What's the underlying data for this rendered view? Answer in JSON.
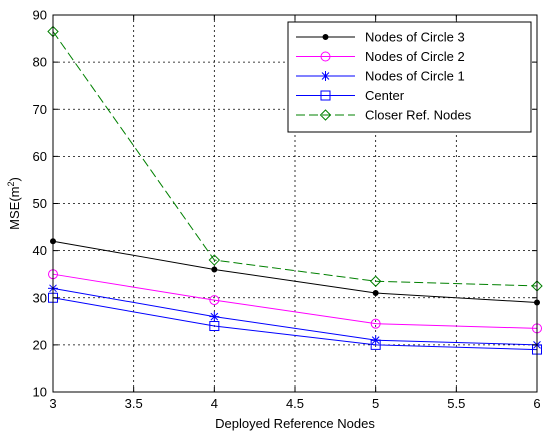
{
  "chart_data": {
    "type": "line",
    "title": "",
    "xlabel": "Deployed Reference Nodes",
    "ylabel_main": "MSE(m",
    "ylabel_sup": "2",
    "ylabel_end": ")",
    "xlim": [
      3,
      6
    ],
    "ylim": [
      10,
      90
    ],
    "xticks": [
      3,
      3.5,
      4,
      4.5,
      5,
      5.5,
      6
    ],
    "xtick_labels": [
      "3",
      "3.5",
      "4",
      "4.5",
      "5",
      "5.5",
      "6"
    ],
    "yticks": [
      10,
      20,
      30,
      40,
      50,
      60,
      70,
      80,
      90
    ],
    "ytick_labels": [
      "10",
      "20",
      "30",
      "40",
      "50",
      "60",
      "70",
      "80",
      "90"
    ],
    "grid": true,
    "legend_position": "top-right",
    "x": [
      3,
      4,
      5,
      6
    ],
    "series": [
      {
        "name": "Nodes of Circle 3",
        "values": [
          42,
          36,
          31,
          29
        ],
        "color": "#000000",
        "marker": "dot",
        "dashed": false
      },
      {
        "name": "Nodes of Circle 2",
        "values": [
          35,
          29.5,
          24.5,
          23.5
        ],
        "color": "#ff00ff",
        "marker": "circle",
        "dashed": false
      },
      {
        "name": "Nodes of Circle 1",
        "values": [
          32,
          26,
          21,
          20
        ],
        "color": "#0000ff",
        "marker": "star",
        "dashed": false
      },
      {
        "name": "Center",
        "values": [
          30,
          24,
          20,
          19
        ],
        "color": "#0000ff",
        "marker": "square",
        "dashed": false
      },
      {
        "name": "Closer Ref. Nodes",
        "values": [
          86.5,
          38,
          33.5,
          32.5
        ],
        "color": "#008000",
        "marker": "diamond",
        "dashed": true
      }
    ]
  }
}
